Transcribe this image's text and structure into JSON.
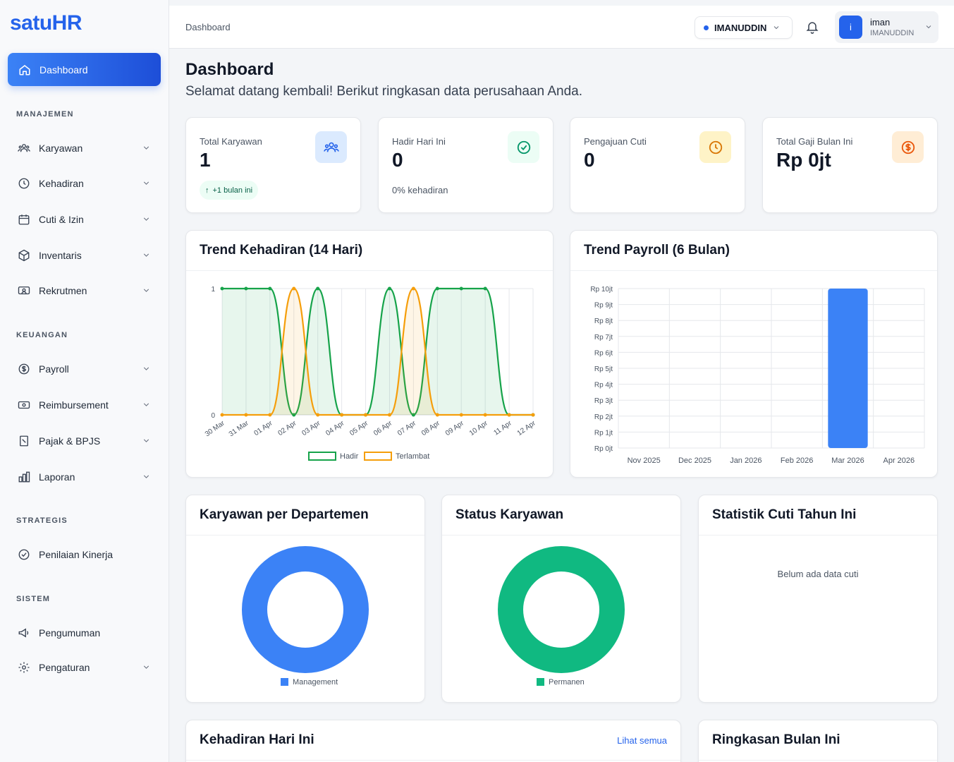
{
  "app": {
    "logo": "satuHR"
  },
  "sidebar": {
    "active": {
      "label": "Dashboard"
    },
    "sections": {
      "manajemen": "MANAJEMEN",
      "keuangan": "KEUANGAN",
      "strategis": "STRATEGIS",
      "sistem": "SISTEM"
    },
    "items": {
      "karyawan": "Karyawan",
      "kehadiran": "Kehadiran",
      "cuti": "Cuti & Izin",
      "inventaris": "Inventaris",
      "rekrutmen": "Rekrutmen",
      "payroll": "Payroll",
      "reimbursement": "Reimbursement",
      "pajak": "Pajak & BPJS",
      "laporan": "Laporan",
      "penilaian": "Penilaian Kinerja",
      "pengumuman": "Pengumuman",
      "pengaturan": "Pengaturan"
    }
  },
  "topbar": {
    "breadcrumb": "Dashboard",
    "company": "IMANUDDIN",
    "user": {
      "initial": "i",
      "name": "iman",
      "company": "IMANUDDIN"
    }
  },
  "page": {
    "title": "Dashboard",
    "subtitle": "Selamat datang kembali! Berikut ringkasan data perusahaan Anda."
  },
  "stats": {
    "karyawan": {
      "label": "Total Karyawan",
      "value": "1",
      "badge": "+1 bulan ini"
    },
    "hadir": {
      "label": "Hadir Hari Ini",
      "value": "0",
      "note": "0% kehadiran"
    },
    "cuti": {
      "label": "Pengajuan Cuti",
      "value": "0"
    },
    "gaji": {
      "label": "Total Gaji Bulan Ini",
      "value": "Rp 0jt"
    }
  },
  "cards": {
    "trend_kehadiran": "Trend Kehadiran (14 Hari)",
    "trend_payroll": "Trend Payroll (6 Bulan)",
    "departemen": "Karyawan per Departemen",
    "status": "Status Karyawan",
    "statistik_cuti": "Statistik Cuti Tahun Ini",
    "statistik_cuti_empty": "Belum ada data cuti",
    "kehadiran_hari_ini": "Kehadiran Hari Ini",
    "lihat_semua": "Lihat semua",
    "ringkasan": "Ringkasan Bulan Ini"
  },
  "colors": {
    "primary": "#2563eb",
    "hadir": "#16a34a",
    "terlambat": "#f59e0b",
    "management": "#3b82f6",
    "permanen": "#10b981"
  },
  "chart_data": [
    {
      "type": "area",
      "title": "Trend Kehadiran (14 Hari)",
      "x": [
        "30 Mar",
        "31 Mar",
        "01 Apr",
        "02 Apr",
        "03 Apr",
        "04 Apr",
        "05 Apr",
        "06 Apr",
        "07 Apr",
        "08 Apr",
        "09 Apr",
        "10 Apr",
        "11 Apr",
        "12 Apr"
      ],
      "series": [
        {
          "name": "Hadir",
          "values": [
            1,
            1,
            1,
            0,
            1,
            0,
            0,
            1,
            0,
            1,
            1,
            1,
            0,
            0
          ],
          "color": "#16a34a"
        },
        {
          "name": "Terlambat",
          "values": [
            0,
            0,
            0,
            1,
            0,
            0,
            0,
            0,
            1,
            0,
            0,
            0,
            0,
            0
          ],
          "color": "#f59e0b"
        }
      ],
      "ylim": [
        0,
        1
      ],
      "yticks": [
        "0",
        "1"
      ],
      "legend": "bottom"
    },
    {
      "type": "bar",
      "title": "Trend Payroll (6 Bulan)",
      "categories": [
        "Nov 2025",
        "Dec 2025",
        "Jan 2026",
        "Feb 2026",
        "Mar 2026",
        "Apr 2026"
      ],
      "values": [
        0,
        0,
        0,
        0,
        10,
        0
      ],
      "yticks": [
        "Rp 0jt",
        "Rp 1jt",
        "Rp 2jt",
        "Rp 3jt",
        "Rp 4jt",
        "Rp 5jt",
        "Rp 6jt",
        "Rp 7jt",
        "Rp 8jt",
        "Rp 9jt",
        "Rp 10jt"
      ],
      "ylim": [
        0,
        10
      ],
      "color": "#3b82f6"
    },
    {
      "type": "pie",
      "title": "Karyawan per Departemen",
      "labels": [
        "Management"
      ],
      "values": [
        1
      ],
      "colors": [
        "#3b82f6"
      ],
      "legend": "bottom"
    },
    {
      "type": "pie",
      "title": "Status Karyawan",
      "labels": [
        "Permanen"
      ],
      "values": [
        1
      ],
      "colors": [
        "#10b981"
      ],
      "legend": "bottom"
    }
  ]
}
